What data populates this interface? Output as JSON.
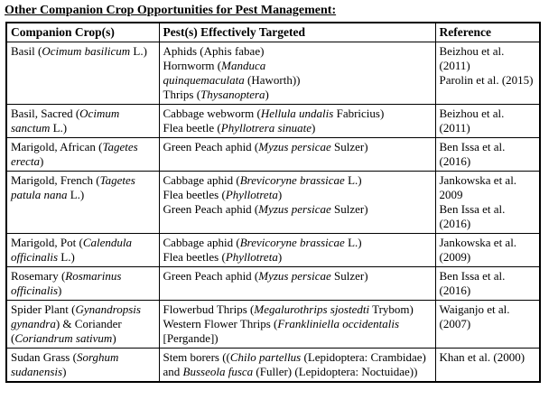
{
  "title": "Other Companion Crop Opportunities for Pest Management:",
  "colors": {
    "text": "#000000",
    "border": "#000000",
    "background": "#ffffff"
  },
  "table": {
    "headers": [
      "Companion Crop(s)",
      "Pest(s) Effectively Targeted",
      "Reference"
    ],
    "rows": [
      {
        "crop": "Basil (*Ocimum basilicum* L.)",
        "pests": [
          "Aphids (Aphis fabae)",
          "Hornworm (*Manduca*\n*quinquemaculata* (Haworth))",
          "Thrips (*Thysanoptera*)"
        ],
        "refs": [
          "Beizhou et al. (2011)",
          "Parolin et al. (2015)"
        ]
      },
      {
        "crop": "Basil, Sacred (*Ocimum sanctum* L.)",
        "pests": [
          "Cabbage webworm (*Hellula undalis* Fabricius)",
          "Flea beetle (*Phyllotrera sinuate*)"
        ],
        "refs": [
          "Beizhou et al. (2011)"
        ]
      },
      {
        "crop": "Marigold, African (*Tagetes erecta*)",
        "pests": [
          "Green Peach aphid (*Myzus persicae* Sulzer)"
        ],
        "refs": [
          "Ben Issa et al. (2016)"
        ]
      },
      {
        "crop": "Marigold, French (*Tagetes patula nana* L.)",
        "pests": [
          "Cabbage aphid (*Brevicoryne brassicae* L.)",
          "Flea beetles (*Phyllotreta*)",
          "Green Peach aphid (*Myzus persicae* Sulzer)"
        ],
        "refs": [
          "Jankowska et al. 2009",
          "Ben Issa et al. (2016)"
        ]
      },
      {
        "crop": "Marigold, Pot (*Calendula officinalis* L.)",
        "pests": [
          "Cabbage aphid (*Brevicoryne brassicae* L.)",
          "Flea beetles (*Phyllotreta*)"
        ],
        "refs": [
          "Jankowska et al. (2009)"
        ]
      },
      {
        "crop": "Rosemary (*Rosmarinus officinalis*)",
        "pests": [
          "Green Peach aphid (*Myzus persicae* Sulzer)"
        ],
        "refs": [
          "Ben Issa et al. (2016)"
        ]
      },
      {
        "crop": "Spider Plant (*Gynandropsis gynandra*) & Coriander (*Coriandrum sativum*)",
        "pests": [
          "Flowerbud Thrips (*Megalurothrips sjostedti* Trybom)",
          "Western Flower Thrips (*Frankliniella occidentalis* [Pergande])"
        ],
        "refs": [
          "Waiganjo et al. (2007)"
        ]
      },
      {
        "crop": "Sudan Grass (*Sorghum sudanensis*)",
        "pests": [
          "Stem borers ((*Chilo partellus* (Lepidoptera: Crambidae) and *Busseola fusca* (Fuller) (Lepidoptera: Noctuidae))"
        ],
        "refs": [
          "Khan et al. (2000)"
        ]
      }
    ]
  }
}
